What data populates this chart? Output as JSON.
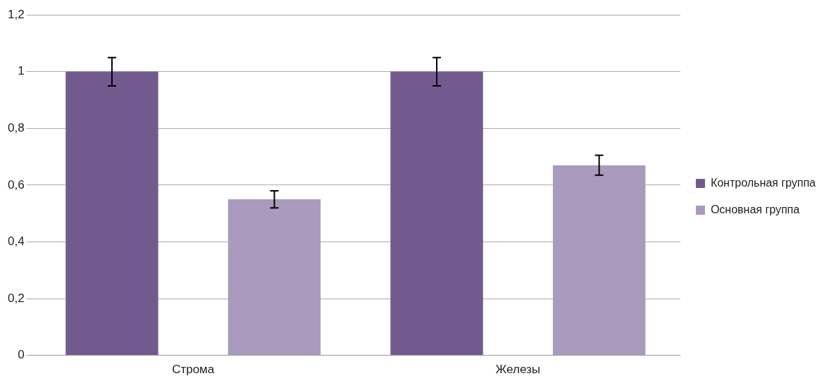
{
  "chart_data": {
    "type": "bar",
    "categories": [
      "Строма",
      "Железы"
    ],
    "series": [
      {
        "name": "Контрольная группа",
        "color": "#725a8f",
        "values": [
          1,
          1
        ],
        "errors": [
          0.05,
          0.05
        ]
      },
      {
        "name": "Основная группа",
        "color": "#a99abe",
        "values": [
          0.55,
          0.67
        ],
        "errors": [
          0.03,
          0.035
        ]
      }
    ],
    "ylim": [
      0,
      1.2
    ],
    "yticks": [
      0,
      {
        "value": 0.2,
        "label": "0,2"
      },
      {
        "value": 0.4,
        "label": "0,4"
      },
      {
        "value": 0.6,
        "label": "0,6"
      },
      {
        "value": 0.8,
        "label": "0,8"
      },
      1,
      {
        "value": 1.2,
        "label": "1,2"
      }
    ],
    "grid": "y",
    "legend": "right"
  }
}
